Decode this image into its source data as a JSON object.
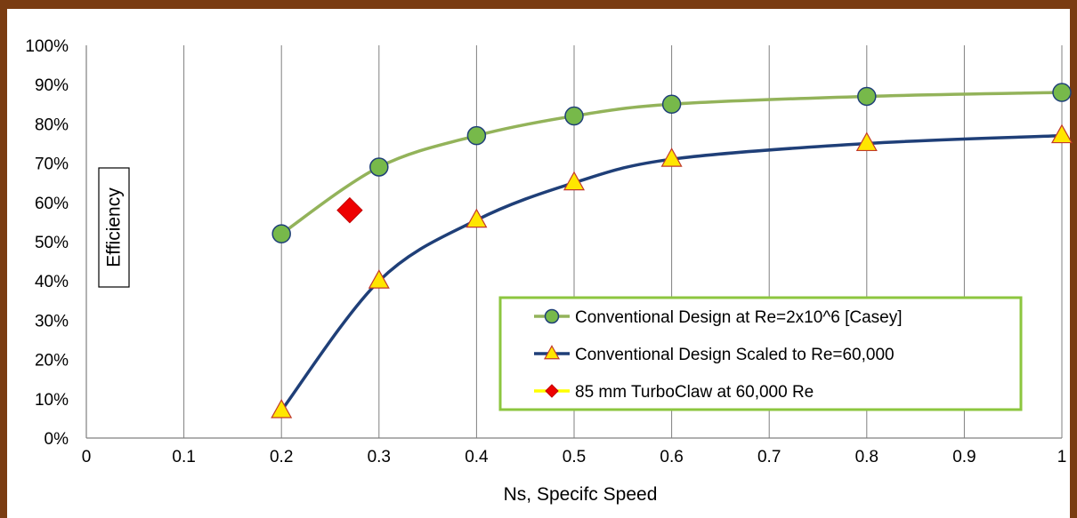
{
  "chart_data": {
    "type": "line",
    "xlabel": "Ns, Specifc Speed",
    "ylabel": "Efficiency",
    "xlim": [
      0,
      1
    ],
    "ylim": [
      0,
      1
    ],
    "x_ticks": [
      0,
      0.1,
      0.2,
      0.3,
      0.4,
      0.5,
      0.6,
      0.7,
      0.8,
      0.9,
      1
    ],
    "x_tick_labels": [
      "0",
      "0.1",
      "0.2",
      "0.3",
      "0.4",
      "0.5",
      "0.6",
      "0.7",
      "0.8",
      "0.9",
      "1"
    ],
    "y_ticks": [
      0,
      0.1,
      0.2,
      0.3,
      0.4,
      0.5,
      0.6,
      0.7,
      0.8,
      0.9,
      1
    ],
    "y_tick_labels": [
      "0%",
      "10%",
      "20%",
      "30%",
      "40%",
      "50%",
      "60%",
      "70%",
      "80%",
      "90%",
      "100%"
    ],
    "grid": "vertical",
    "legend_position": "bottom-right",
    "series": [
      {
        "name": "Conventional Design at Re=2x10^6 [Casey]",
        "marker": "circle",
        "line_color": "#93b35a",
        "marker_fill": "#77b94a",
        "marker_stroke": "#1f3f78",
        "smooth": true,
        "x": [
          0.2,
          0.3,
          0.4,
          0.5,
          0.6,
          0.8,
          1.0
        ],
        "y": [
          0.52,
          0.69,
          0.77,
          0.82,
          0.85,
          0.87,
          0.88
        ]
      },
      {
        "name": "Conventional Design Scaled to Re=60,000",
        "marker": "triangle",
        "line_color": "#1f3f78",
        "marker_fill": "#ffe600",
        "marker_stroke": "#c0392b",
        "smooth": true,
        "x": [
          0.2,
          0.3,
          0.4,
          0.5,
          0.6,
          0.8,
          1.0
        ],
        "y": [
          0.07,
          0.4,
          0.555,
          0.65,
          0.71,
          0.75,
          0.77
        ]
      },
      {
        "name": "85 mm TurboClaw at 60,000 Re",
        "marker": "diamond",
        "line_color": "#ffff00",
        "marker_fill": "#ee0000",
        "marker_stroke": "#c00000",
        "smooth": false,
        "x": [
          0.27
        ],
        "y": [
          0.58
        ]
      }
    ],
    "colors": {
      "frame": "#7a3c12",
      "legend_border": "#8cc63f",
      "grid": "#808080"
    }
  }
}
